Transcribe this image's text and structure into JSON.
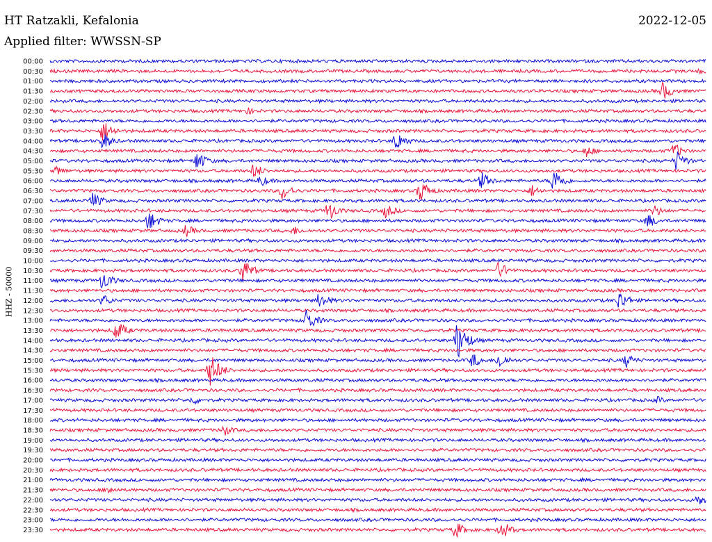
{
  "header": {
    "station": "HT Ratzakli, Kefalonia",
    "date": "2022-12-05",
    "filter": "Applied filter: WWSSN-SP"
  },
  "chart_data": {
    "type": "line",
    "title": "HT Ratzakli, Kefalonia",
    "ylabel": "HHZ - 50000",
    "row_labels": [
      "00:00",
      "00:30",
      "01:00",
      "01:30",
      "02:00",
      "02:30",
      "03:00",
      "03:30",
      "04:00",
      "04:30",
      "05:00",
      "05:30",
      "06:00",
      "06:30",
      "07:00",
      "07:30",
      "08:00",
      "08:30",
      "09:00",
      "09:30",
      "10:00",
      "10:30",
      "11:00",
      "11:30",
      "12:00",
      "12:30",
      "13:00",
      "13:30",
      "14:00",
      "14:30",
      "15:00",
      "15:30",
      "16:00",
      "16:30",
      "17:00",
      "17:30",
      "18:00",
      "18:30",
      "19:00",
      "19:30",
      "20:00",
      "20:30",
      "21:00",
      "21:30",
      "22:00",
      "22:30",
      "23:00",
      "23:30"
    ],
    "colors": [
      "#0b0bd6",
      "#e8163c"
    ],
    "row_minutes": 30,
    "events": [
      {
        "row": 1,
        "minute": 29.7,
        "amp": 5
      },
      {
        "row": 3,
        "minute": 28.0,
        "amp": 14
      },
      {
        "row": 5,
        "minute": 9.0,
        "amp": 6
      },
      {
        "row": 7,
        "minute": 2.4,
        "amp": 18
      },
      {
        "row": 8,
        "minute": 2.4,
        "amp": 14
      },
      {
        "row": 8,
        "minute": 15.8,
        "amp": 16
      },
      {
        "row": 9,
        "minute": 24.5,
        "amp": 10
      },
      {
        "row": 9,
        "minute": 28.5,
        "amp": 12
      },
      {
        "row": 10,
        "minute": 6.7,
        "amp": 16
      },
      {
        "row": 10,
        "minute": 28.6,
        "amp": 16
      },
      {
        "row": 11,
        "minute": 0.3,
        "amp": 8
      },
      {
        "row": 11,
        "minute": 9.3,
        "amp": 12
      },
      {
        "row": 12,
        "minute": 9.6,
        "amp": 10
      },
      {
        "row": 12,
        "minute": 19.7,
        "amp": 14
      },
      {
        "row": 12,
        "minute": 23.0,
        "amp": 20
      },
      {
        "row": 13,
        "minute": 10.6,
        "amp": 14
      },
      {
        "row": 13,
        "minute": 16.9,
        "amp": 18
      },
      {
        "row": 13,
        "minute": 22.0,
        "amp": 10
      },
      {
        "row": 14,
        "minute": 1.9,
        "amp": 14
      },
      {
        "row": 15,
        "minute": 12.7,
        "amp": 16
      },
      {
        "row": 15,
        "minute": 15.3,
        "amp": 12
      },
      {
        "row": 15,
        "minute": 27.6,
        "amp": 10
      },
      {
        "row": 16,
        "minute": 4.5,
        "amp": 16
      },
      {
        "row": 16,
        "minute": 27.3,
        "amp": 12
      },
      {
        "row": 17,
        "minute": 6.2,
        "amp": 10
      },
      {
        "row": 17,
        "minute": 11.1,
        "amp": 8
      },
      {
        "row": 21,
        "minute": 8.8,
        "amp": 20
      },
      {
        "row": 21,
        "minute": 20.5,
        "amp": 14
      },
      {
        "row": 22,
        "minute": 2.4,
        "amp": 16
      },
      {
        "row": 24,
        "minute": 2.4,
        "amp": 10
      },
      {
        "row": 24,
        "minute": 12.3,
        "amp": 14
      },
      {
        "row": 24,
        "minute": 26.0,
        "amp": 16
      },
      {
        "row": 26,
        "minute": 11.7,
        "amp": 18
      },
      {
        "row": 27,
        "minute": 3.0,
        "amp": 16
      },
      {
        "row": 28,
        "minute": 18.6,
        "amp": 30
      },
      {
        "row": 30,
        "minute": 19.3,
        "amp": 12
      },
      {
        "row": 30,
        "minute": 20.5,
        "amp": 14
      },
      {
        "row": 30,
        "minute": 26.3,
        "amp": 12
      },
      {
        "row": 31,
        "minute": 7.3,
        "amp": 26
      },
      {
        "row": 34,
        "minute": 6.5,
        "amp": 8
      },
      {
        "row": 34,
        "minute": 27.7,
        "amp": 7
      },
      {
        "row": 37,
        "minute": 7.9,
        "amp": 10
      },
      {
        "row": 43,
        "minute": 2.6,
        "amp": 9
      },
      {
        "row": 44,
        "minute": 29.6,
        "amp": 10
      },
      {
        "row": 47,
        "minute": 18.5,
        "amp": 14
      },
      {
        "row": 47,
        "minute": 20.6,
        "amp": 16
      }
    ]
  }
}
